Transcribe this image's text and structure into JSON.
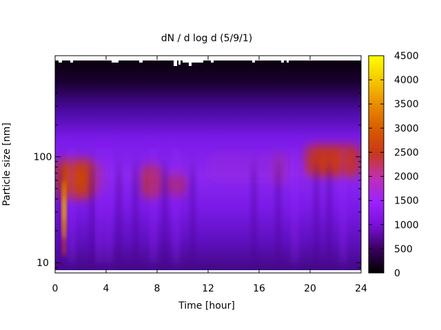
{
  "chart_data": {
    "type": "heatmap",
    "title": "dN / d log d (5/9/1)",
    "xlabel": "Time [hour]",
    "ylabel": "Particle size [nm]",
    "xlim": [
      0,
      24
    ],
    "ylim": [
      8,
      900
    ],
    "yscale": "log",
    "x_ticks": [
      "0",
      "4",
      "8",
      "12",
      "16",
      "20",
      "24"
    ],
    "y_ticks": [
      "10",
      "100"
    ],
    "colorbar": {
      "range": [
        0,
        4500
      ],
      "ticks": [
        "0",
        "500",
        "1000",
        "1500",
        "2000",
        "2500",
        "3000",
        "3500",
        "4000",
        "4500"
      ],
      "colormap": "gnuplot-pm3d (black-purple-red-yellow)"
    },
    "grid": false,
    "features": [
      {
        "desc": "narrow high-concentration band near start",
        "time_h": 0.7,
        "size_nm_range": [
          15,
          60
        ],
        "peak_value": 3300
      },
      {
        "desc": "morning mode",
        "time_range_h": [
          0.5,
          3
        ],
        "size_nm_center": 60,
        "value": 2400
      },
      {
        "desc": "mid-morning mode",
        "time_range_h": [
          7,
          10
        ],
        "size_nm_center": 55,
        "value": 2300
      },
      {
        "desc": "evening mode",
        "time_range_h": [
          19.5,
          24
        ],
        "size_nm_center": 85,
        "value": 2500
      }
    ]
  }
}
